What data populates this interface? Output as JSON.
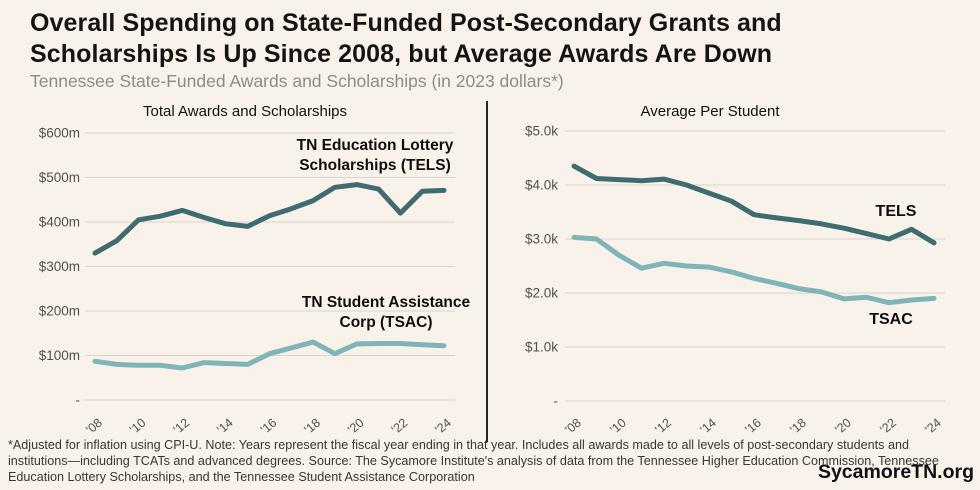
{
  "header": {
    "title": "Overall Spending on State-Funded Post-Secondary Grants and Scholarships Is Up Since 2008, but Average Awards Are Down",
    "subtitle": "Tennessee State-Funded Awards and Scholarships (in 2023 dollars*)"
  },
  "footer": {
    "note": "*Adjusted for inflation using CPI-U. Note: Years represent the fiscal year ending in that year.  Includes all awards made to all levels of post-secondary students and institutions—including TCATs and advanced degrees. Source: The Sycamore Institute's analysis of data from the Tennessee Higher Education Commission, Tennessee Education Lottery Scholarships, and the Tennessee Student Assistance Corporation",
    "brand": "SycamoreTN.org"
  },
  "colors": {
    "background": "#f9f2ea",
    "tels": "#3e6c70",
    "tsac": "#7fb4b8",
    "gridline": "#d9d4cc",
    "axis_text": "#55514a",
    "divider": "#262626"
  },
  "chart_data": [
    {
      "type": "line",
      "title": "Total Awards and Scholarships",
      "x": [
        2008,
        2009,
        2010,
        2011,
        2012,
        2013,
        2014,
        2015,
        2016,
        2017,
        2018,
        2019,
        2020,
        2021,
        2022,
        2023,
        2024
      ],
      "x_ticks": [
        2008,
        2010,
        2012,
        2014,
        2016,
        2018,
        2020,
        2022,
        2024
      ],
      "x_tick_labels": [
        "'08",
        "'10",
        "'12",
        "'14",
        "'16",
        "'18",
        "'20",
        "'22",
        "'24"
      ],
      "ylim": [
        0,
        600
      ],
      "y_ticks": [
        0,
        100,
        200,
        300,
        400,
        500,
        600
      ],
      "y_tick_labels": [
        "-",
        "$100m",
        "$200m",
        "$300m",
        "$400m",
        "$500m",
        "$600m"
      ],
      "y_unit": "millions of dollars",
      "grid": true,
      "legend_position": "inline-annotations",
      "series": [
        {
          "name": "TN Education Lottery Scholarships (TELS)",
          "annotation": "TN Education Lottery\nScholarships (TELS)",
          "color": "#3e6c70",
          "values": [
            330,
            358,
            405,
            413,
            426,
            410,
            396,
            390,
            414,
            430,
            448,
            478,
            484,
            474,
            420,
            469,
            471
          ]
        },
        {
          "name": "TN Student Assistance Corp (TSAC)",
          "annotation": "TN Student Assistance\nCorp (TSAC)",
          "color": "#7fb4b8",
          "values": [
            87,
            80,
            78,
            78,
            72,
            84,
            82,
            80,
            104,
            117,
            130,
            104,
            126,
            127,
            127,
            124,
            122
          ]
        }
      ]
    },
    {
      "type": "line",
      "title": "Average Per Student",
      "x": [
        2008,
        2009,
        2010,
        2011,
        2012,
        2013,
        2014,
        2015,
        2016,
        2017,
        2018,
        2019,
        2020,
        2021,
        2022,
        2023,
        2024
      ],
      "x_ticks": [
        2008,
        2010,
        2012,
        2014,
        2016,
        2018,
        2020,
        2022,
        2024
      ],
      "x_tick_labels": [
        "'08",
        "'10",
        "'12",
        "'14",
        "'16",
        "'18",
        "'20",
        "'22",
        "'24"
      ],
      "ylim": [
        0,
        5000
      ],
      "y_ticks": [
        0,
        1000,
        2000,
        3000,
        4000,
        5000
      ],
      "y_tick_labels": [
        "-",
        "$1.0k",
        "$2.0k",
        "$3.0k",
        "$4.0k",
        "$5.0k"
      ],
      "y_unit": "dollars",
      "grid": true,
      "legend_position": "inline-annotations",
      "series": [
        {
          "name": "TELS",
          "annotation": "TELS",
          "color": "#3e6c70",
          "values": [
            4350,
            4120,
            4100,
            4080,
            4110,
            4000,
            3850,
            3700,
            3450,
            3390,
            3340,
            3280,
            3200,
            3100,
            3000,
            3180,
            2930
          ]
        },
        {
          "name": "TSAC",
          "annotation": "TSAC",
          "color": "#7fb4b8",
          "values": [
            3030,
            3000,
            2700,
            2460,
            2550,
            2500,
            2480,
            2390,
            2270,
            2180,
            2080,
            2020,
            1890,
            1920,
            1820,
            1870,
            1900
          ]
        }
      ]
    }
  ]
}
